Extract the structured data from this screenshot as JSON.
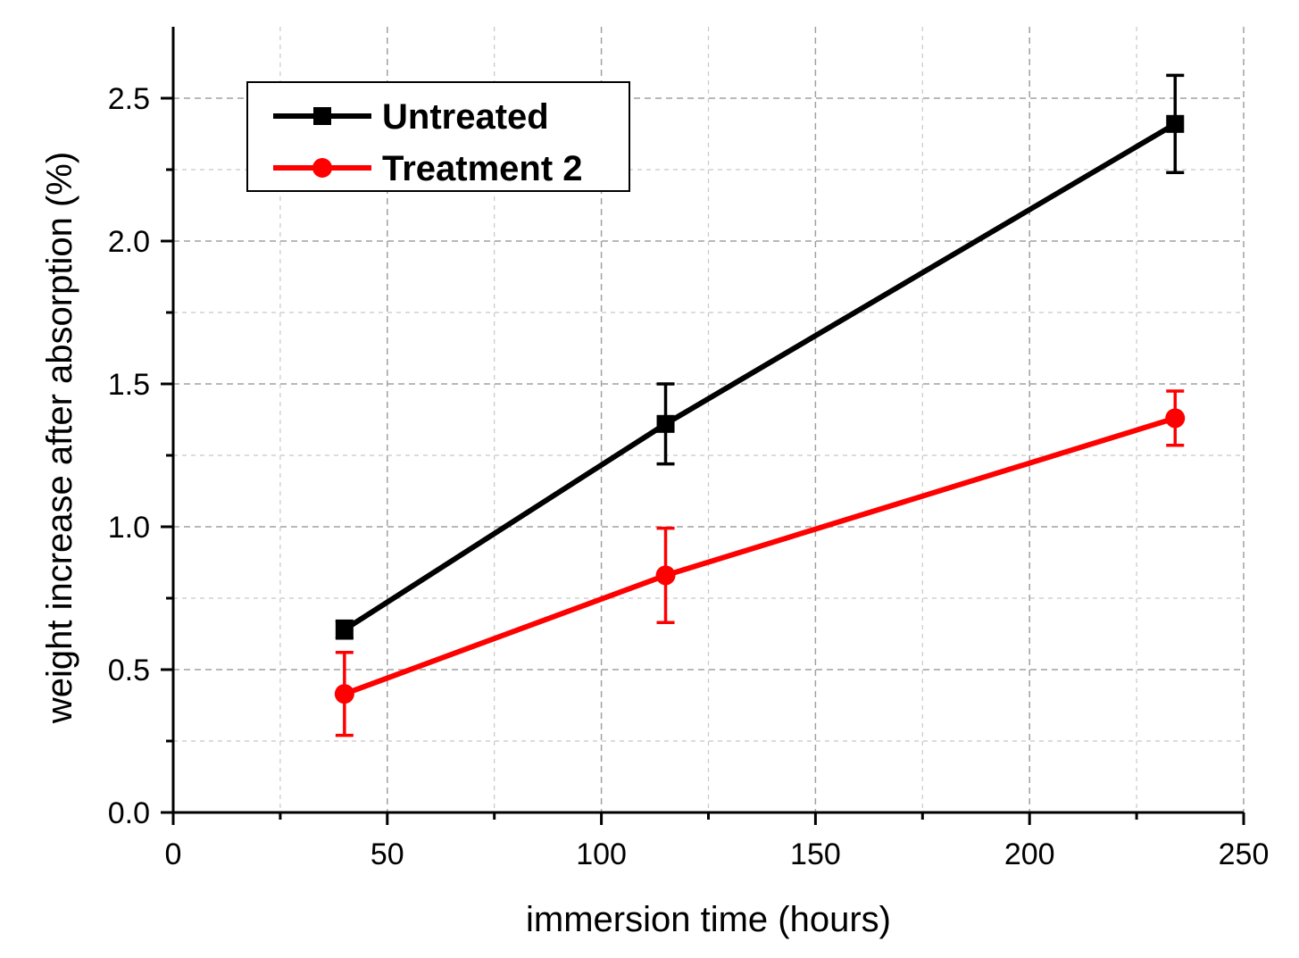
{
  "chart_data": {
    "type": "line",
    "title": "",
    "xlabel": "immersion time (hours)",
    "ylabel": "weight increase after absorption (%)",
    "xlim": [
      0,
      250
    ],
    "ylim": [
      0,
      2.75
    ],
    "xticks": [
      0,
      50,
      100,
      150,
      200,
      250
    ],
    "xtick_labels": [
      "0",
      "50",
      "100",
      "150",
      "200",
      "250"
    ],
    "xminor": [
      25,
      75,
      125,
      175,
      225
    ],
    "yticks": [
      0,
      0.5,
      1.0,
      1.5,
      2.0,
      2.5
    ],
    "ytick_labels": [
      "0.0",
      "0.5",
      "1.0",
      "1.5",
      "2.0",
      "2.5"
    ],
    "yminor": [
      0.25,
      0.75,
      1.25,
      1.75,
      2.25
    ],
    "grid": true,
    "legend_position": "top-left",
    "series": [
      {
        "name": "Untreated",
        "color": "#000000",
        "marker": "square",
        "x": [
          40,
          115,
          234
        ],
        "y": [
          0.64,
          1.36,
          2.41
        ],
        "err": [
          0.03,
          0.14,
          0.17
        ]
      },
      {
        "name": "Treatment 2",
        "color": "#ff0000",
        "marker": "circle",
        "x": [
          40,
          115,
          234
        ],
        "y": [
          0.415,
          0.83,
          1.38
        ],
        "err": [
          0.145,
          0.165,
          0.095
        ]
      }
    ]
  }
}
